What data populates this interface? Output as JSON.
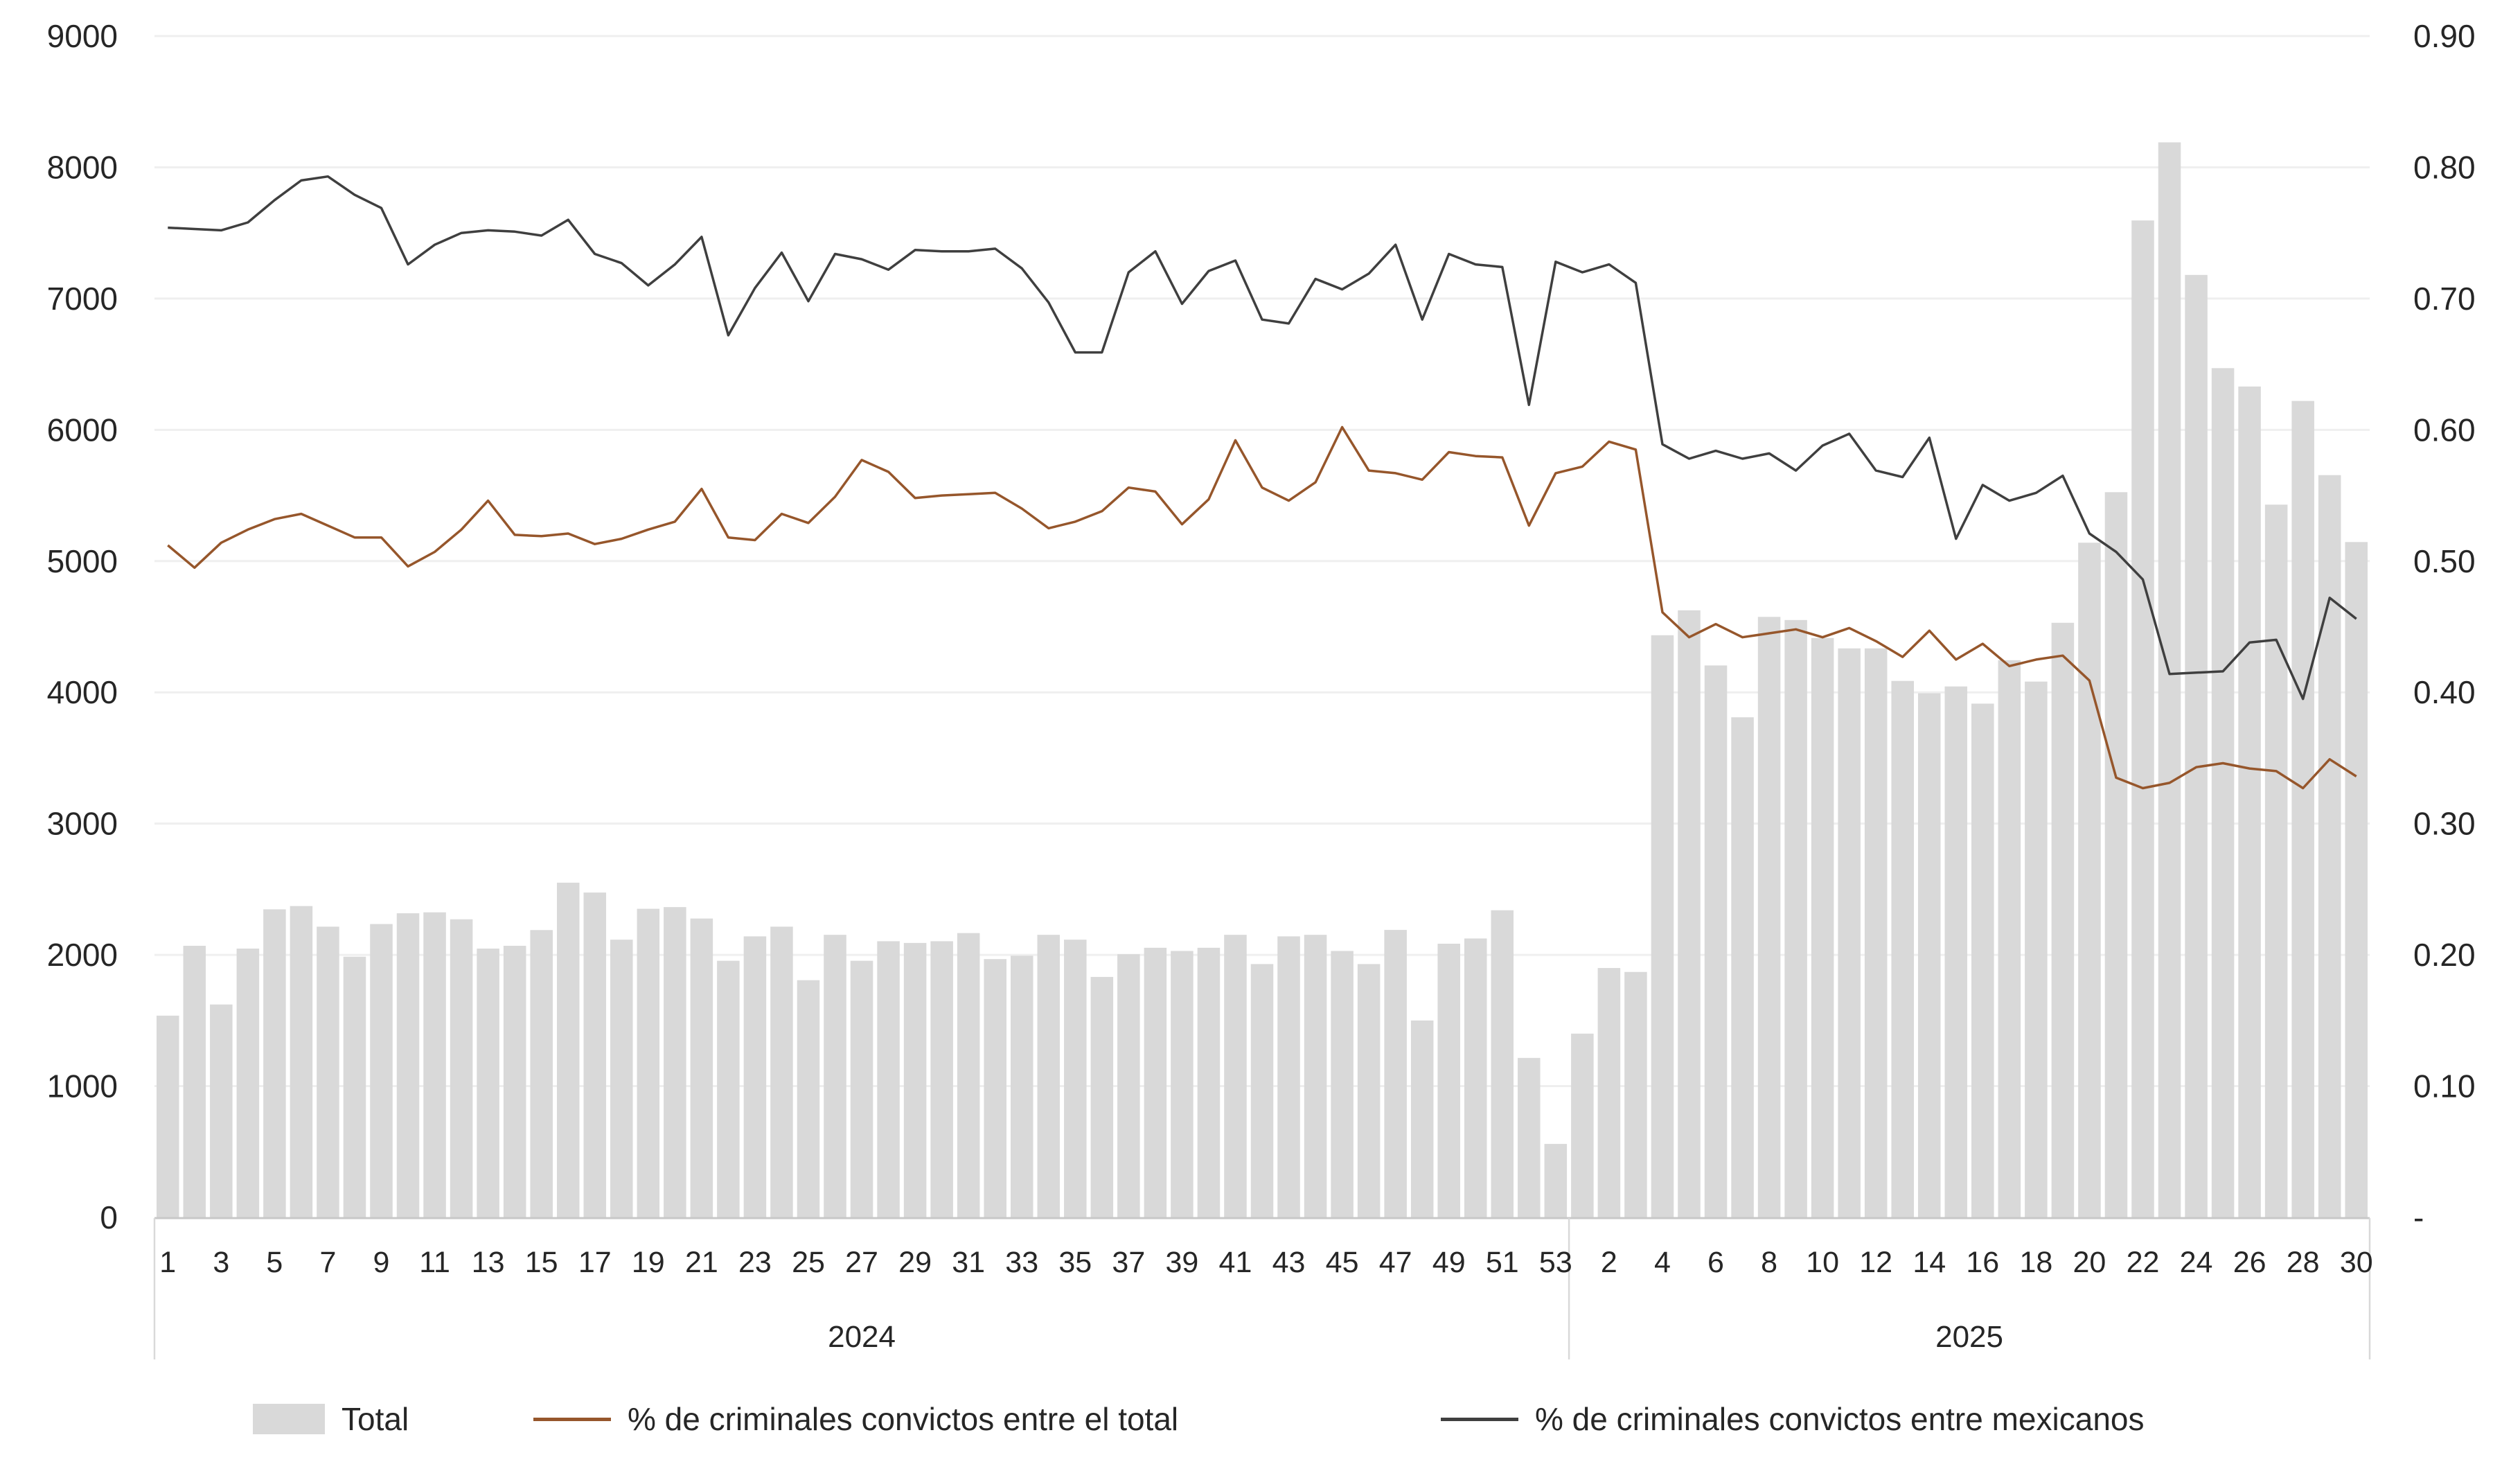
{
  "chart": {
    "left_axis_ticks": [
      "9000",
      "8000",
      "7000",
      "6000",
      "5000",
      "4000",
      "3000",
      "2000",
      "1000",
      "0"
    ],
    "right_axis_ticks": [
      "0.90",
      "0.80",
      "0.70",
      "0.60",
      "0.50",
      "0.40",
      "0.30",
      "0.20",
      "0.10",
      "-"
    ],
    "colors": {
      "bar": "#d9d9d9",
      "line_total_pct": "#96562B",
      "line_mex_pct": "#3f3f3f",
      "gridline": "#efefef",
      "axis_line": "#c8c8c8",
      "divider": "#d9d9d9",
      "text": "#262626"
    },
    "legend": {
      "total_label": "Total",
      "total_pct_label": "% de criminales convictos entre el total",
      "mex_pct_label": "% de criminales convictos entre mexicanos"
    }
  },
  "chart_data": {
    "type": "combo",
    "title": "",
    "xlabel": "",
    "ylabel_left": "",
    "ylabel_right": "",
    "left_axis": {
      "min": 0,
      "max": 9000,
      "step": 1000
    },
    "right_axis": {
      "min": 0,
      "max": 0.9,
      "step": 0.1
    },
    "grid": true,
    "legend_position": "bottom",
    "groups": [
      {
        "label": "2024",
        "weeks": 53,
        "tick_labels": [
          1,
          3,
          5,
          7,
          9,
          11,
          13,
          15,
          17,
          19,
          21,
          23,
          25,
          27,
          29,
          31,
          33,
          35,
          37,
          39,
          41,
          43,
          45,
          47,
          49,
          51,
          53
        ]
      },
      {
        "label": "2025",
        "weeks": 30,
        "tick_labels": [
          2,
          4,
          6,
          8,
          10,
          12,
          14,
          16,
          18,
          20,
          22,
          24,
          26,
          28,
          30
        ]
      }
    ],
    "series": [
      {
        "name": "Total",
        "type": "bar",
        "axis": "left",
        "values": [
          1537,
          2069,
          1622,
          2048,
          2347,
          2372,
          2215,
          1986,
          2235,
          2317,
          2324,
          2271,
          2048,
          2069,
          2189,
          2550,
          2475,
          2116,
          2351,
          2364,
          2277,
          1955,
          2141,
          2215,
          1807,
          2153,
          1955,
          2104,
          2091,
          2104,
          2166,
          1968,
          1993,
          2153,
          2116,
          1832,
          2005,
          2054,
          2030,
          2054,
          2153,
          1930,
          2141,
          2153,
          2030,
          1930,
          2190,
          1500,
          2085,
          2125,
          2340,
          1215,
          560,
          1400,
          1900,
          1870,
          4435,
          4625,
          4205,
          3810,
          4575,
          4551,
          4414,
          4335,
          4335,
          4087,
          3993,
          4045,
          3914,
          4245,
          4082,
          4530,
          5140,
          5525,
          7595,
          8190,
          7180,
          6470,
          6330,
          5430,
          6220,
          5655,
          5145
        ]
      },
      {
        "name": "% de criminales convictos entre el total",
        "type": "line",
        "axis": "right",
        "values": [
          0.512,
          0.495,
          0.514,
          0.524,
          0.532,
          0.536,
          0.527,
          0.518,
          0.518,
          0.496,
          0.507,
          0.524,
          0.546,
          0.52,
          0.519,
          0.521,
          0.513,
          0.517,
          0.524,
          0.53,
          0.555,
          0.518,
          0.516,
          0.536,
          0.529,
          0.549,
          0.577,
          0.568,
          0.548,
          0.55,
          0.551,
          0.552,
          0.54,
          0.525,
          0.53,
          0.538,
          0.556,
          0.553,
          0.528,
          0.547,
          0.592,
          0.556,
          0.546,
          0.56,
          0.602,
          0.569,
          0.567,
          0.562,
          0.583,
          0.58,
          0.579,
          0.527,
          0.567,
          0.572,
          0.591,
          0.585,
          0.461,
          0.442,
          0.452,
          0.442,
          0.445,
          0.448,
          0.442,
          0.449,
          0.439,
          0.427,
          0.447,
          0.425,
          0.437,
          0.42,
          0.425,
          0.428,
          0.409,
          0.335,
          0.327,
          0.331,
          0.343,
          0.346,
          0.342,
          0.34,
          0.327,
          0.349,
          0.336
        ]
      },
      {
        "name": "% de criminales convictos entre mexicanos",
        "type": "line",
        "axis": "right",
        "values": [
          0.754,
          0.753,
          0.752,
          0.758,
          0.775,
          0.79,
          0.793,
          0.779,
          0.769,
          0.726,
          0.741,
          0.75,
          0.752,
          0.751,
          0.748,
          0.76,
          0.734,
          0.727,
          0.71,
          0.726,
          0.747,
          0.672,
          0.708,
          0.735,
          0.698,
          0.734,
          0.73,
          0.722,
          0.737,
          0.736,
          0.736,
          0.738,
          0.723,
          0.697,
          0.659,
          0.659,
          0.72,
          0.736,
          0.696,
          0.721,
          0.729,
          0.684,
          0.681,
          0.715,
          0.707,
          0.719,
          0.741,
          0.684,
          0.734,
          0.726,
          0.724,
          0.619,
          0.728,
          0.72,
          0.726,
          0.712,
          0.589,
          0.578,
          0.584,
          0.578,
          0.582,
          0.569,
          0.588,
          0.597,
          0.569,
          0.564,
          0.594,
          0.517,
          0.558,
          0.546,
          0.552,
          0.565,
          0.521,
          0.507,
          0.486,
          0.414,
          0.415,
          0.416,
          0.438,
          0.44,
          0.395,
          0.472,
          0.456
        ]
      }
    ]
  }
}
